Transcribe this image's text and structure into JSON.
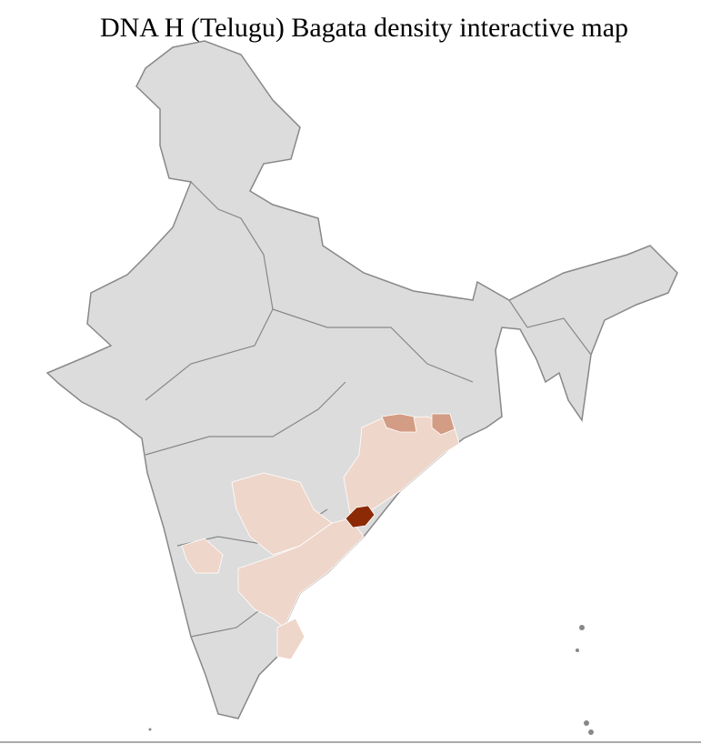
{
  "title": "DNA H (Telugu) Bagata density interactive map",
  "colors": {
    "no_data": "#dcdcdc",
    "border": "#888888",
    "district_border": "#ffffff",
    "low": "#efd6ca",
    "medium": "#d39c84",
    "high": "#8b2a04"
  }
}
